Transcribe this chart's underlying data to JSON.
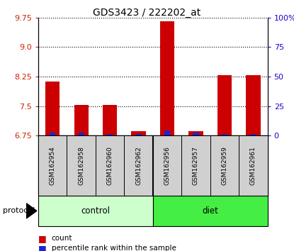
{
  "title": "GDS3423 / 222202_at",
  "samples": [
    "GSM162954",
    "GSM162958",
    "GSM162960",
    "GSM162962",
    "GSM162956",
    "GSM162957",
    "GSM162959",
    "GSM162961"
  ],
  "red_values": [
    8.13,
    7.52,
    7.52,
    6.87,
    9.65,
    6.87,
    8.28,
    8.28
  ],
  "blue_values": [
    6.82,
    6.82,
    6.78,
    6.78,
    6.88,
    6.83,
    6.78,
    6.79
  ],
  "y_min": 6.75,
  "y_max": 9.75,
  "y_ticks_left": [
    6.75,
    7.5,
    8.25,
    9.0,
    9.75
  ],
  "y_ticks_right": [
    0,
    25,
    50,
    75,
    100
  ],
  "bar_width": 0.5,
  "red_color": "#cc0000",
  "blue_color": "#2222cc",
  "bg_color": "#ffffff",
  "tick_label_color_left": "#cc2200",
  "tick_label_color_right": "#2200cc",
  "control_color": "#ccffcc",
  "diet_color": "#44ee44",
  "sample_box_color": "#d0d0d0",
  "protocol_label": "protocol"
}
